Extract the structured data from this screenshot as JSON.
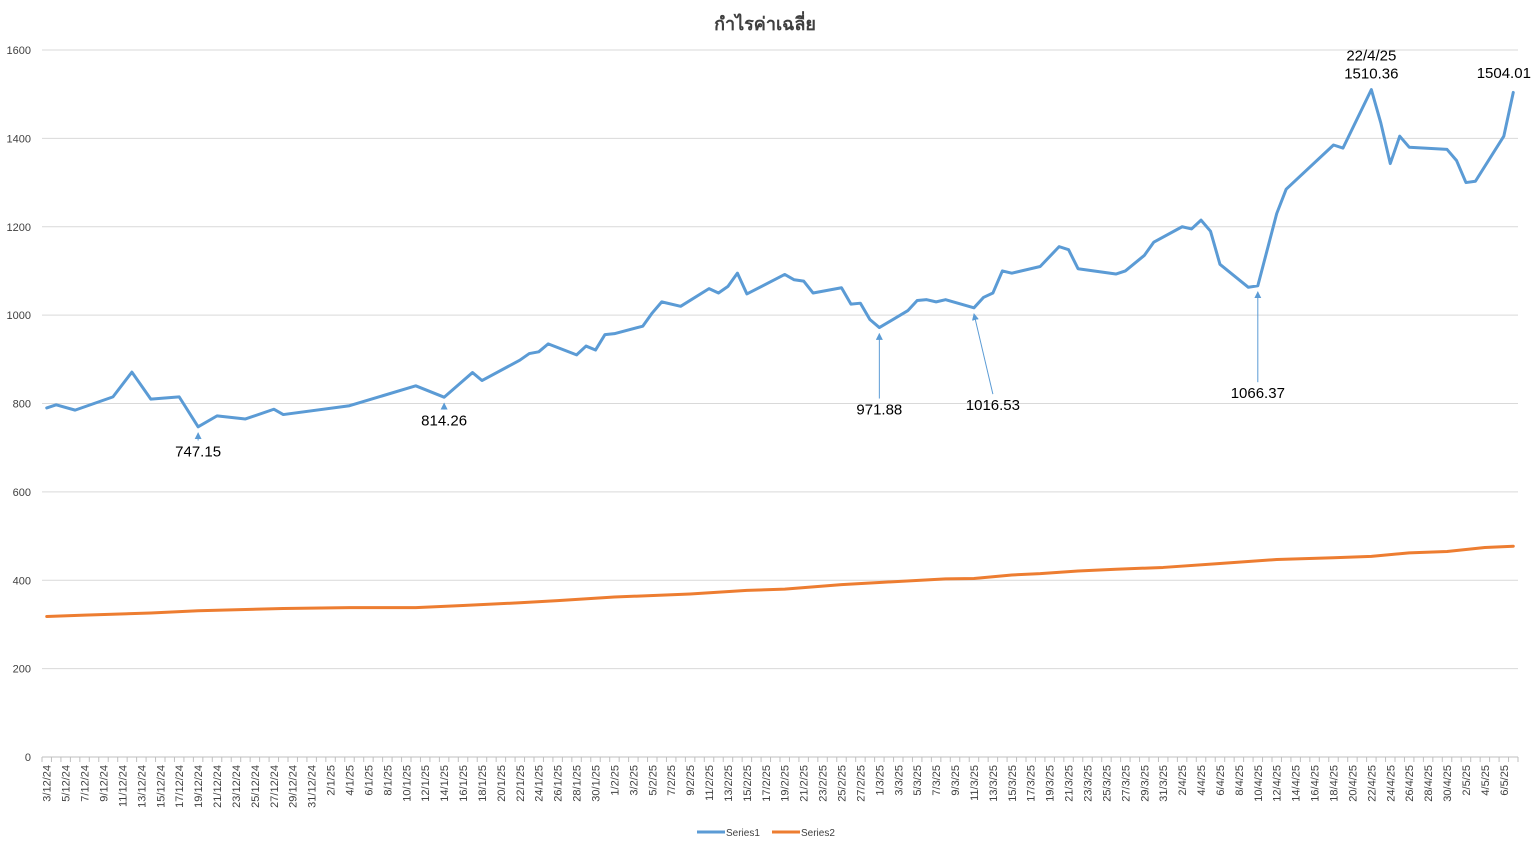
{
  "chart_data": {
    "type": "line",
    "title": "กำไรค่าเฉลี่ย",
    "xlabel": "",
    "ylabel": "",
    "ylim": [
      0,
      1600
    ],
    "yticks": [
      0,
      200,
      400,
      600,
      800,
      1000,
      1200,
      1400,
      1600
    ],
    "grid": true,
    "legend_position": "bottom",
    "x_start": "2024-12-03",
    "x_end": "2025-05-07",
    "x_tick_labels": [
      "3/12/24",
      "5/12/24",
      "7/12/24",
      "9/12/24",
      "11/12/24",
      "13/12/24",
      "15/12/24",
      "17/12/24",
      "19/12/24",
      "21/12/24",
      "23/12/24",
      "25/12/24",
      "27/12/24",
      "29/12/24",
      "31/12/24",
      "2/1/25",
      "4/1/25",
      "6/1/25",
      "8/1/25",
      "10/1/25",
      "12/1/25",
      "14/1/25",
      "16/1/25",
      "18/1/25",
      "20/1/25",
      "22/1/25",
      "24/1/25",
      "26/1/25",
      "28/1/25",
      "30/1/25",
      "1/2/25",
      "3/2/25",
      "5/2/25",
      "7/2/25",
      "9/2/25",
      "11/2/25",
      "13/2/25",
      "15/2/25",
      "17/2/25",
      "19/2/25",
      "21/2/25",
      "23/2/25",
      "25/2/25",
      "27/2/25",
      "1/3/25",
      "3/3/25",
      "5/3/25",
      "7/3/25",
      "9/3/25",
      "11/3/25",
      "13/3/25",
      "15/3/25",
      "17/3/25",
      "19/3/25",
      "21/3/25",
      "23/3/25",
      "25/3/25",
      "27/3/25",
      "29/3/25",
      "31/3/25",
      "2/4/25",
      "4/4/25",
      "6/4/25",
      "8/4/25",
      "10/4/25",
      "12/4/25",
      "14/4/25",
      "16/4/25",
      "18/4/25",
      "20/4/25",
      "22/4/25",
      "24/4/25",
      "26/4/25",
      "28/4/25",
      "30/4/25",
      "2/5/25",
      "4/5/25",
      "6/5/25"
    ],
    "series": [
      {
        "name": "Series1",
        "color": "#5B9BD5",
        "points": [
          [
            "2024-12-03",
            790
          ],
          [
            "2024-12-04",
            797
          ],
          [
            "2024-12-06",
            785
          ],
          [
            "2024-12-10",
            815
          ],
          [
            "2024-12-12",
            871
          ],
          [
            "2024-12-14",
            810
          ],
          [
            "2024-12-17",
            815
          ],
          [
            "2024-12-19",
            747.15
          ],
          [
            "2024-12-21",
            772
          ],
          [
            "2024-12-24",
            765
          ],
          [
            "2024-12-27",
            787
          ],
          [
            "2024-12-28",
            775
          ],
          [
            "2025-01-04",
            795
          ],
          [
            "2025-01-11",
            840
          ],
          [
            "2025-01-14",
            814.26
          ],
          [
            "2025-01-17",
            870
          ],
          [
            "2025-01-18",
            852
          ],
          [
            "2025-01-22",
            898
          ],
          [
            "2025-01-23",
            913
          ],
          [
            "2025-01-24",
            917
          ],
          [
            "2025-01-25",
            935
          ],
          [
            "2025-01-28",
            910
          ],
          [
            "2025-01-29",
            930
          ],
          [
            "2025-01-30",
            921
          ],
          [
            "2025-01-31",
            956
          ],
          [
            "2025-02-01",
            958
          ],
          [
            "2025-02-04",
            975
          ],
          [
            "2025-02-05",
            1005
          ],
          [
            "2025-02-06",
            1030
          ],
          [
            "2025-02-08",
            1020
          ],
          [
            "2025-02-11",
            1060
          ],
          [
            "2025-02-12",
            1050
          ],
          [
            "2025-02-13",
            1065
          ],
          [
            "2025-02-14",
            1095
          ],
          [
            "2025-02-15",
            1048
          ],
          [
            "2025-02-19",
            1092
          ],
          [
            "2025-02-20",
            1080
          ],
          [
            "2025-02-21",
            1077
          ],
          [
            "2025-02-22",
            1050
          ],
          [
            "2025-02-25",
            1062
          ],
          [
            "2025-02-26",
            1025
          ],
          [
            "2025-02-27",
            1027
          ],
          [
            "2025-02-28",
            990
          ],
          [
            "2025-03-01",
            971.88
          ],
          [
            "2025-03-04",
            1010
          ],
          [
            "2025-03-05",
            1033
          ],
          [
            "2025-03-06",
            1035
          ],
          [
            "2025-03-07",
            1030
          ],
          [
            "2025-03-08",
            1035
          ],
          [
            "2025-03-11",
            1016.53
          ],
          [
            "2025-03-12",
            1040
          ],
          [
            "2025-03-13",
            1050
          ],
          [
            "2025-03-14",
            1100
          ],
          [
            "2025-03-15",
            1095
          ],
          [
            "2025-03-18",
            1110
          ],
          [
            "2025-03-20",
            1155
          ],
          [
            "2025-03-21",
            1148
          ],
          [
            "2025-03-22",
            1105
          ],
          [
            "2025-03-26",
            1093
          ],
          [
            "2025-03-27",
            1100
          ],
          [
            "2025-03-29",
            1135
          ],
          [
            "2025-03-30",
            1165
          ],
          [
            "2025-04-02",
            1200
          ],
          [
            "2025-04-03",
            1195
          ],
          [
            "2025-04-04",
            1215
          ],
          [
            "2025-04-05",
            1190
          ],
          [
            "2025-04-06",
            1115
          ],
          [
            "2025-04-09",
            1063
          ],
          [
            "2025-04-10",
            1066.37
          ],
          [
            "2025-04-12",
            1230
          ],
          [
            "2025-04-13",
            1285
          ],
          [
            "2025-04-18",
            1385
          ],
          [
            "2025-04-19",
            1378
          ],
          [
            "2025-04-22",
            1510.36
          ],
          [
            "2025-04-23",
            1435
          ],
          [
            "2025-04-24",
            1343
          ],
          [
            "2025-04-25",
            1405
          ],
          [
            "2025-04-26",
            1380
          ],
          [
            "2025-04-30",
            1375
          ],
          [
            "2025-05-01",
            1350
          ],
          [
            "2025-05-02",
            1300
          ],
          [
            "2025-05-03",
            1303
          ],
          [
            "2025-05-06",
            1405
          ],
          [
            "2025-05-07",
            1504.01
          ]
        ]
      },
      {
        "name": "Series2",
        "color": "#ED7D31",
        "points": [
          [
            "2024-12-03",
            318
          ],
          [
            "2024-12-07",
            321
          ],
          [
            "2024-12-14",
            326
          ],
          [
            "2024-12-19",
            331
          ],
          [
            "2024-12-28",
            336
          ],
          [
            "2025-01-04",
            338
          ],
          [
            "2025-01-11",
            338
          ],
          [
            "2025-01-16",
            343
          ],
          [
            "2025-01-22",
            349
          ],
          [
            "2025-01-26",
            354
          ],
          [
            "2025-02-01",
            362
          ],
          [
            "2025-02-09",
            369
          ],
          [
            "2025-02-15",
            377
          ],
          [
            "2025-02-19",
            380
          ],
          [
            "2025-02-25",
            390
          ],
          [
            "2025-03-01",
            395
          ],
          [
            "2025-03-08",
            403
          ],
          [
            "2025-03-11",
            404
          ],
          [
            "2025-03-15",
            412
          ],
          [
            "2025-03-18",
            415
          ],
          [
            "2025-03-22",
            421
          ],
          [
            "2025-03-26",
            425
          ],
          [
            "2025-03-31",
            429
          ],
          [
            "2025-04-06",
            438
          ],
          [
            "2025-04-12",
            447
          ],
          [
            "2025-04-18",
            451
          ],
          [
            "2025-04-22",
            454
          ],
          [
            "2025-04-26",
            462
          ],
          [
            "2025-04-30",
            465
          ],
          [
            "2025-05-04",
            474
          ],
          [
            "2025-05-07",
            477
          ]
        ]
      }
    ],
    "annotations": [
      {
        "text": "747.15",
        "x": "2024-12-19",
        "y": 747.15,
        "y_text": 680,
        "arrow": true
      },
      {
        "text": "814.26",
        "x": "2025-01-14",
        "y": 814.26,
        "y_text": 750,
        "arrow": true
      },
      {
        "text": "971.88",
        "x": "2025-03-01",
        "y": 971.88,
        "y_text": 775,
        "arrow": true
      },
      {
        "text": "1016.53",
        "x": "2025-03-11",
        "x_text": "2025-03-13",
        "y": 1016.53,
        "y_text": 785,
        "arrow": true
      },
      {
        "text": "1066.37",
        "x": "2025-04-10",
        "y": 1066.37,
        "y_text": 812,
        "arrow": true
      },
      {
        "text": "22/4/25",
        "x": "2025-04-22",
        "y": 1510.36,
        "y_text": 1576,
        "arrow": false
      },
      {
        "text": "1510.36",
        "x": "2025-04-22",
        "y": 1510.36,
        "y_text": 1535,
        "arrow": false
      },
      {
        "text": "1504.01",
        "x": "2025-05-06",
        "y": 1504.01,
        "y_text": 1537,
        "arrow": false
      }
    ]
  }
}
